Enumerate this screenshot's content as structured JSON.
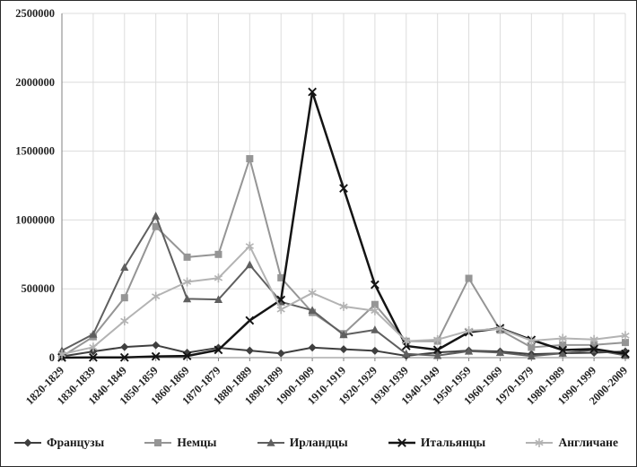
{
  "chart_data": {
    "type": "line",
    "title": "",
    "xlabel": "",
    "ylabel": "",
    "ylim": [
      0,
      2500000
    ],
    "y_tick_labels": [
      "0",
      "500000",
      "1000000",
      "1500000",
      "2000000",
      "2500000"
    ],
    "grid": "vertical-and-horizontal",
    "legend_position": "bottom",
    "categories": [
      "1820-1829",
      "1830-1839",
      "1840-1849",
      "1850-1859",
      "1860-1869",
      "1870-1879",
      "1880-1889",
      "1890-1899",
      "1900-1909",
      "1910-1919",
      "1920-1929",
      "1930-1939",
      "1940-1949",
      "1950-1959",
      "1960-1969",
      "1970-1979",
      "1980-1989",
      "1990-1999",
      "2000-2009"
    ],
    "series": [
      {
        "name": "Французы",
        "marker": "diamond",
        "color": "#3f3f3f",
        "line_width": 2,
        "values": [
          9000,
          45000,
          77000,
          90000,
          36000,
          72000,
          51000,
          31000,
          73000,
          61000,
          50000,
          13000,
          38000,
          51000,
          45000,
          25000,
          32000,
          36000,
          45000
        ]
      },
      {
        "name": "Немцы",
        "marker": "square",
        "color": "#959595",
        "line_width": 2,
        "values": [
          8000,
          152000,
          435000,
          952000,
          730000,
          750000,
          1445000,
          580000,
          328000,
          174000,
          386000,
          119000,
          120000,
          576000,
          200000,
          75000,
          92000,
          93000,
          110000
        ]
      },
      {
        "name": "Ирландцы",
        "marker": "triangle",
        "color": "#5f5f5f",
        "line_width": 2,
        "values": [
          51000,
          170000,
          656000,
          1029000,
          427000,
          422000,
          674000,
          405000,
          344000,
          166000,
          202000,
          28000,
          15000,
          47000,
          37000,
          11000,
          32000,
          57000,
          16000
        ]
      },
      {
        "name": "Итальянцы",
        "marker": "x",
        "color": "#141414",
        "line_width": 2.5,
        "values": [
          400,
          2000,
          2000,
          9000,
          12000,
          56000,
          270000,
          420000,
          1930000,
          1230000,
          530000,
          85000,
          57000,
          185000,
          214000,
          129000,
          55000,
          63000,
          28000
        ]
      },
      {
        "name": "Англичане",
        "marker": "asterisk",
        "color": "#b3b3b3",
        "line_width": 2,
        "values": [
          25000,
          76000,
          267000,
          445000,
          550000,
          578000,
          810000,
          350000,
          470000,
          372000,
          340000,
          120000,
          131000,
          195000,
          210000,
          123000,
          140000,
          132000,
          160000
        ]
      }
    ]
  }
}
